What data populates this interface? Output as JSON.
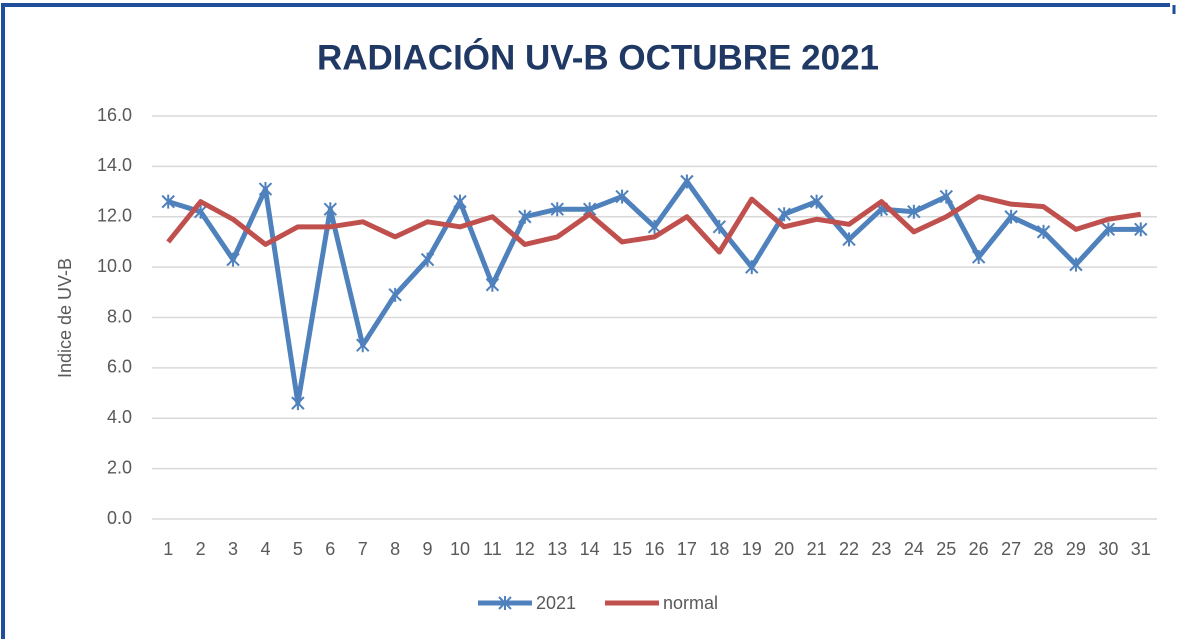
{
  "chart_data": {
    "type": "line",
    "title": "RADIACIÓN UV-B OCTUBRE 2021",
    "y_label": "Indice de UV-B",
    "categories": [
      "1",
      "2",
      "3",
      "4",
      "5",
      "6",
      "7",
      "8",
      "9",
      "10",
      "11",
      "12",
      "13",
      "14",
      "15",
      "16",
      "17",
      "18",
      "19",
      "20",
      "21",
      "22",
      "23",
      "24",
      "25",
      "26",
      "27",
      "28",
      "29",
      "30",
      "31"
    ],
    "series": [
      {
        "name": "2021",
        "color": "#4f81bd",
        "marker": "star",
        "values": [
          12.6,
          12.2,
          10.3,
          13.1,
          4.6,
          12.3,
          6.9,
          8.9,
          10.3,
          12.6,
          9.3,
          12.0,
          12.3,
          12.3,
          12.8,
          11.6,
          13.4,
          11.6,
          10.0,
          12.1,
          12.6,
          11.1,
          12.3,
          12.2,
          12.8,
          10.4,
          12.0,
          11.4,
          10.1,
          11.5,
          11.5
        ]
      },
      {
        "name": "normal",
        "color": "#c0504d",
        "values": [
          11.0,
          12.6,
          11.9,
          10.9,
          11.6,
          11.6,
          11.8,
          11.2,
          11.8,
          11.6,
          12.0,
          10.9,
          11.2,
          12.1,
          11.0,
          11.2,
          12.0,
          10.6,
          12.7,
          11.6,
          11.9,
          11.7,
          12.6,
          11.4,
          12.0,
          12.8,
          12.5,
          12.4,
          11.5,
          11.9,
          12.1
        ]
      }
    ],
    "ylim": [
      0,
      16
    ],
    "yticks": [
      {
        "value": 0,
        "label": "0.0"
      },
      {
        "value": 2,
        "label": "2.0"
      },
      {
        "value": 4,
        "label": "4.0"
      },
      {
        "value": 6,
        "label": "6.0"
      },
      {
        "value": 8,
        "label": "8.0"
      },
      {
        "value": 10,
        "label": "10.0"
      },
      {
        "value": 12,
        "label": "12.0"
      },
      {
        "value": 14,
        "label": "14.0"
      },
      {
        "value": 16,
        "label": "16.0"
      }
    ],
    "grid": true,
    "legend": "bottom"
  }
}
